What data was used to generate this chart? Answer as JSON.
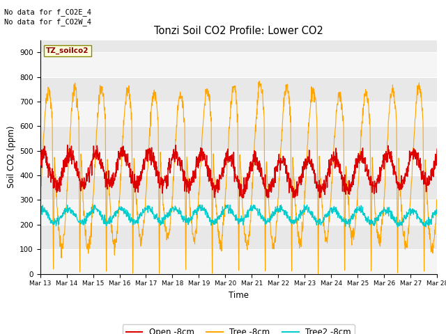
{
  "title": "Tonzi Soil CO2 Profile: Lower CO2",
  "xlabel": "Time",
  "ylabel": "Soil CO2 (ppm)",
  "ylim": [
    0,
    950
  ],
  "yticks": [
    0,
    100,
    200,
    300,
    400,
    500,
    600,
    700,
    800,
    900
  ],
  "start_day": 13,
  "end_day": 28,
  "n_points": 1500,
  "open_color": "#dd0000",
  "tree_color": "#ffa500",
  "tree2_color": "#00cccc",
  "legend_labels": [
    "Open -8cm",
    "Tree -8cm",
    "Tree2 -8cm"
  ],
  "annotation_text1": "No data for f_CO2E_4",
  "annotation_text2": "No data for f_CO2W_4",
  "box_label": "TZ_soilco2",
  "background_color": "#e8e8e8",
  "fig_bg": "#ffffff"
}
